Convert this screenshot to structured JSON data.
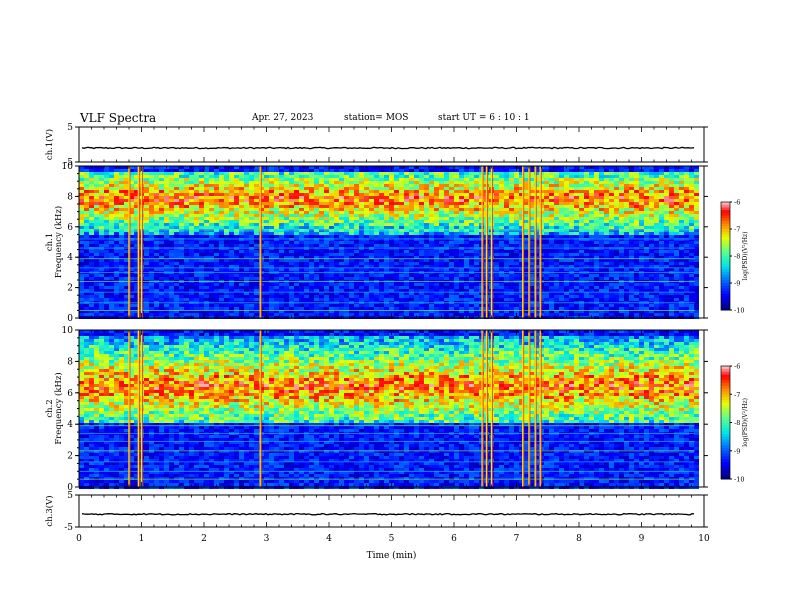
{
  "header": {
    "title": "VLF Spectra",
    "date": "Apr. 27, 2023",
    "station": "station= MOS",
    "start_ut": "start UT =  6 : 10 : 1"
  },
  "chart_data": [
    {
      "type": "line",
      "panel": "ch1-waveform",
      "ylabel": "ch.1(V)",
      "ylim": [
        -5,
        5
      ],
      "yticks": [
        "5",
        "-5"
      ],
      "xlim": [
        0,
        10
      ],
      "series": [
        {
          "values_constant": -1.0
        }
      ],
      "grid": false
    },
    {
      "type": "heatmap",
      "panel": "ch1-spectrogram",
      "ylabel": "ch.1\nFrequency (kHz)",
      "ylim": [
        0,
        10
      ],
      "yticks": [
        "0",
        "2",
        "4",
        "6",
        "8",
        "10"
      ],
      "xlim": [
        0,
        9.85
      ],
      "colorbar": {
        "label": "log(PSD)(V²/Hz)",
        "range": [
          -10,
          -6
        ],
        "ticks": [
          "-6",
          "-7",
          "-8",
          "-9",
          "-10"
        ]
      },
      "band_kHz": [
        5.5,
        9.8
      ],
      "impulses_min": [
        0.8,
        0.95,
        1.0,
        2.9,
        6.45,
        6.52,
        6.6,
        7.1,
        7.2,
        7.3,
        7.38
      ],
      "tones_kHz": [
        0.5,
        1.0,
        1.7,
        2.4,
        3.0,
        3.3,
        3.9,
        4.6,
        5.2,
        5.8
      ]
    },
    {
      "type": "heatmap",
      "panel": "ch2-spectrogram",
      "ylabel": "ch.2\nFrequency (kHz)",
      "ylim": [
        0,
        10
      ],
      "yticks": [
        "0",
        "2",
        "4",
        "6",
        "8",
        "10"
      ],
      "xlim": [
        0,
        9.85
      ],
      "colorbar": {
        "label": "log(PSD)(V²/Hz)",
        "range": [
          -10,
          -6
        ],
        "ticks": [
          "-6",
          "-7",
          "-8",
          "-9",
          "-10"
        ]
      },
      "band_kHz": [
        4.2,
        9.8
      ],
      "impulses_min": [
        0.8,
        0.95,
        1.0,
        2.9,
        6.45,
        6.52,
        6.6,
        7.1,
        7.2,
        7.3,
        7.38
      ],
      "tones_kHz": [
        0.5,
        1.0,
        1.6,
        2.3,
        2.9,
        3.4,
        3.9
      ]
    },
    {
      "type": "line",
      "panel": "ch2-waveform",
      "ylabel": "ch.3(V)",
      "ylim": [
        -5,
        5
      ],
      "yticks": [
        "5",
        "-5"
      ],
      "xlim": [
        0,
        10
      ],
      "series": [
        {
          "values_constant": -1.0
        }
      ],
      "xlabel": "Time (min)",
      "xticks": [
        "0",
        "1",
        "2",
        "3",
        "4",
        "5",
        "6",
        "7",
        "8",
        "9",
        "10"
      ],
      "grid": false
    }
  ],
  "colors": {
    "background_noise": "#000010",
    "colormap": [
      "#00007f",
      "#0000ff",
      "#0080ff",
      "#00ffff",
      "#80ff80",
      "#ffff00",
      "#ff8000",
      "#ff0000",
      "#ffffff"
    ]
  }
}
